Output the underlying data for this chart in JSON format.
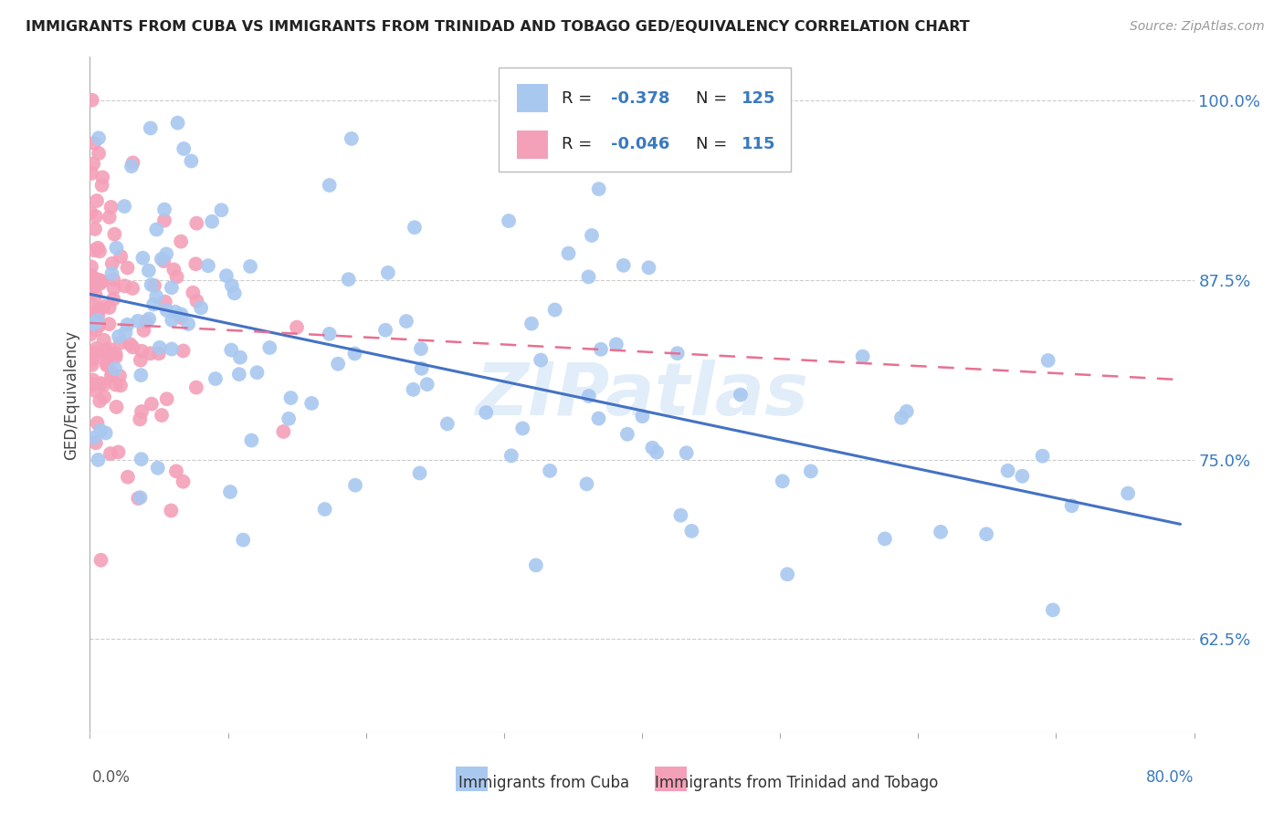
{
  "title": "IMMIGRANTS FROM CUBA VS IMMIGRANTS FROM TRINIDAD AND TOBAGO GED/EQUIVALENCY CORRELATION CHART",
  "source": "Source: ZipAtlas.com",
  "ylabel": "GED/Equivalency",
  "xlim": [
    0.0,
    80.0
  ],
  "ylim": [
    56.0,
    103.0
  ],
  "yticks": [
    62.5,
    75.0,
    87.5,
    100.0
  ],
  "ytick_labels": [
    "62.5%",
    "75.0%",
    "87.5%",
    "100.0%"
  ],
  "legend_r_cuba": "-0.378",
  "legend_n_cuba": "125",
  "legend_r_tt": "-0.046",
  "legend_n_tt": "115",
  "color_cuba": "#a8c8f0",
  "color_tt": "#f4a0b8",
  "color_trendline_cuba": "#4472c4",
  "color_trendline_tt": "#e87090",
  "watermark": "ZIPatlas",
  "cuba_trendline_x0": 0.0,
  "cuba_trendline_y0": 86.5,
  "cuba_trendline_x1": 79.0,
  "cuba_trendline_y1": 70.5,
  "tt_trendline_x0": 0.0,
  "tt_trendline_y0": 84.5,
  "tt_trendline_x1": 20.0,
  "tt_trendline_y1": 83.5
}
